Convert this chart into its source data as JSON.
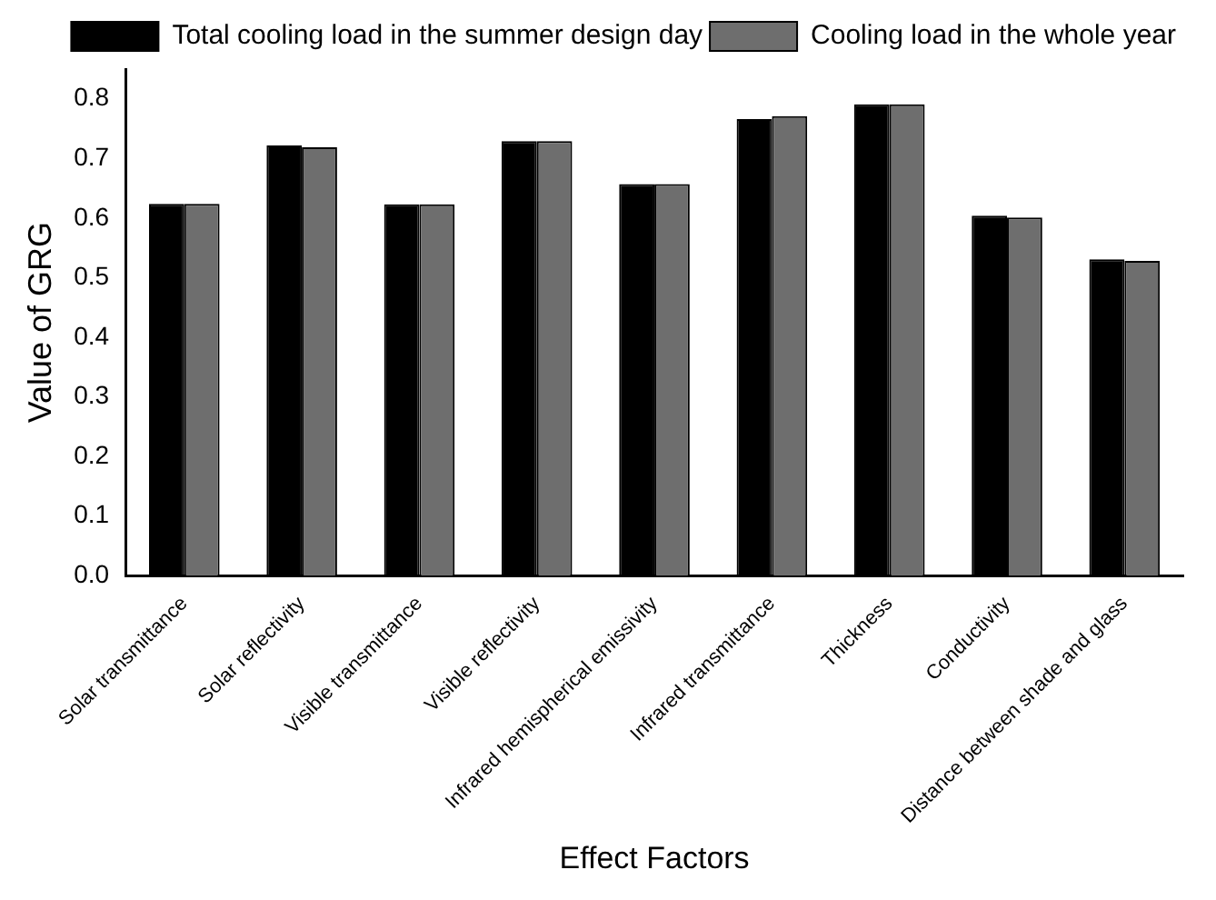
{
  "chart_data": {
    "type": "bar",
    "xlabel": "Effect Factors",
    "ylabel": "Value of GRG",
    "categories": [
      "Solar transmittance",
      "Solar reflectivity",
      "Visible transmittance",
      "Visible reflectivity",
      "Infrared hemispherical emissivity",
      "Infrared transmittance",
      "Thickness",
      "Conductivity",
      "Distance between shade and glass"
    ],
    "series": [
      {
        "name": "Total cooling load in the summer design day",
        "color": "#000000",
        "values": [
          0.624,
          0.722,
          0.623,
          0.729,
          0.657,
          0.766,
          0.791,
          0.604,
          0.531
        ]
      },
      {
        "name": "Cooling load in the whole year",
        "color": "#6e6e6e",
        "values": [
          0.624,
          0.719,
          0.623,
          0.729,
          0.657,
          0.771,
          0.791,
          0.601,
          0.528
        ]
      }
    ],
    "ylim": [
      0,
      0.85
    ],
    "yticks": [
      {
        "value": 0,
        "label": "0.0"
      },
      0.1,
      0.2,
      0.3,
      0.4,
      0.5,
      0.6,
      0.7,
      0.8
    ],
    "grid": false,
    "legend": "top right"
  }
}
